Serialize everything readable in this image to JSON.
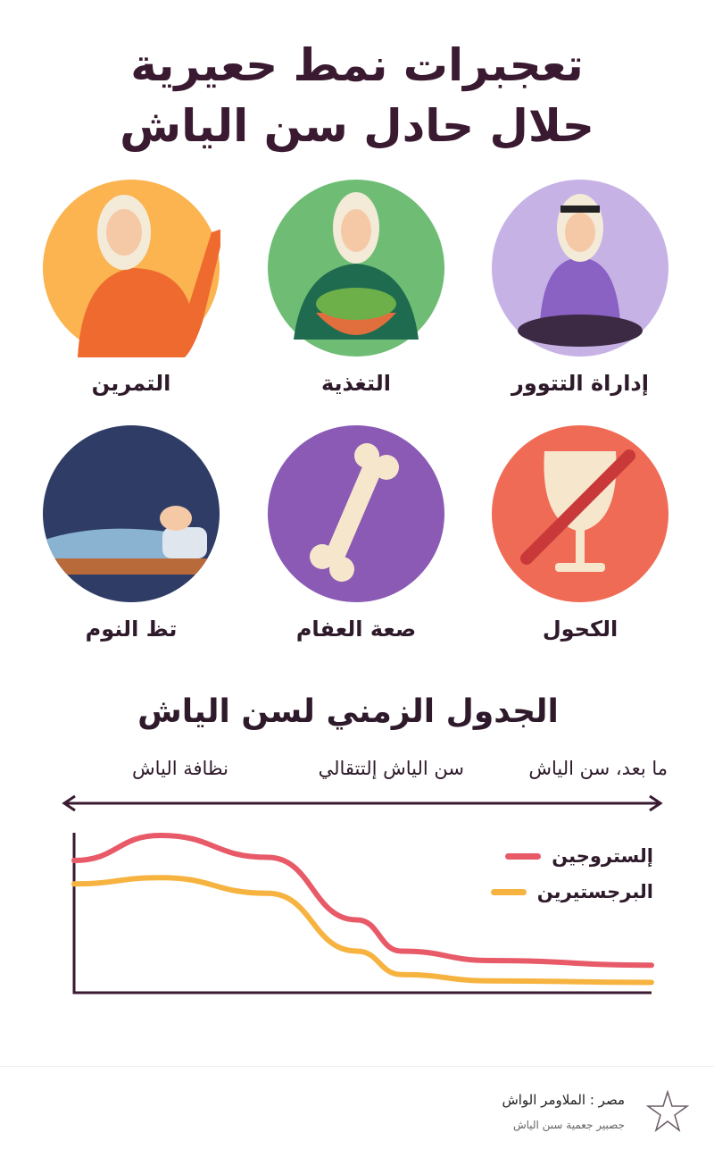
{
  "title": {
    "line1": "تعجبرات نمط حعيرية",
    "line2": "حلال حادل سن الياش"
  },
  "cards": [
    {
      "label": "التمرين",
      "icon": "exercise-woman-waving-icon",
      "bg": "#fbb450"
    },
    {
      "label": "التغذية",
      "icon": "woman-salad-bowl-icon",
      "bg": "#6fbd74"
    },
    {
      "label": "إداراة التتوور",
      "icon": "woman-meditating-icon",
      "bg": "#c7b2e6"
    },
    {
      "label": "تظ النوم",
      "icon": "sleeping-moon-icon",
      "bg": "#2f3d66"
    },
    {
      "label": "صعة العفام",
      "icon": "bone-icon",
      "bg": "#8a5ab5"
    },
    {
      "label": "الكحول",
      "icon": "no-alcohol-icon",
      "bg": "#ef6b55"
    }
  ],
  "timeline": {
    "title": "الجدول الزمني لسن الياش",
    "phases": [
      "ما بعد، سن الياش",
      "سن الياش إلتتقالي",
      "نظافة الياش"
    ]
  },
  "chart_data": {
    "type": "line",
    "title": "",
    "xlabel": "",
    "ylabel": "",
    "grid": false,
    "legend": "top-right",
    "x": [
      0,
      1,
      2,
      3,
      4,
      5,
      6
    ],
    "series": [
      {
        "name": "إلستروجين",
        "color": "#e85a68",
        "values": [
          84,
          100,
          86,
          46,
          26,
          20,
          17
        ]
      },
      {
        "name": "البرجستيرين",
        "color": "#f7b340",
        "values": [
          69,
          73,
          63,
          26,
          11,
          7,
          6
        ]
      }
    ],
    "ylim": [
      0,
      100
    ]
  },
  "footer": {
    "line1": "مصر : الملاومر الواش",
    "line2": "جصبير جعمية سىن الياش",
    "logo": "star-logo-icon"
  }
}
